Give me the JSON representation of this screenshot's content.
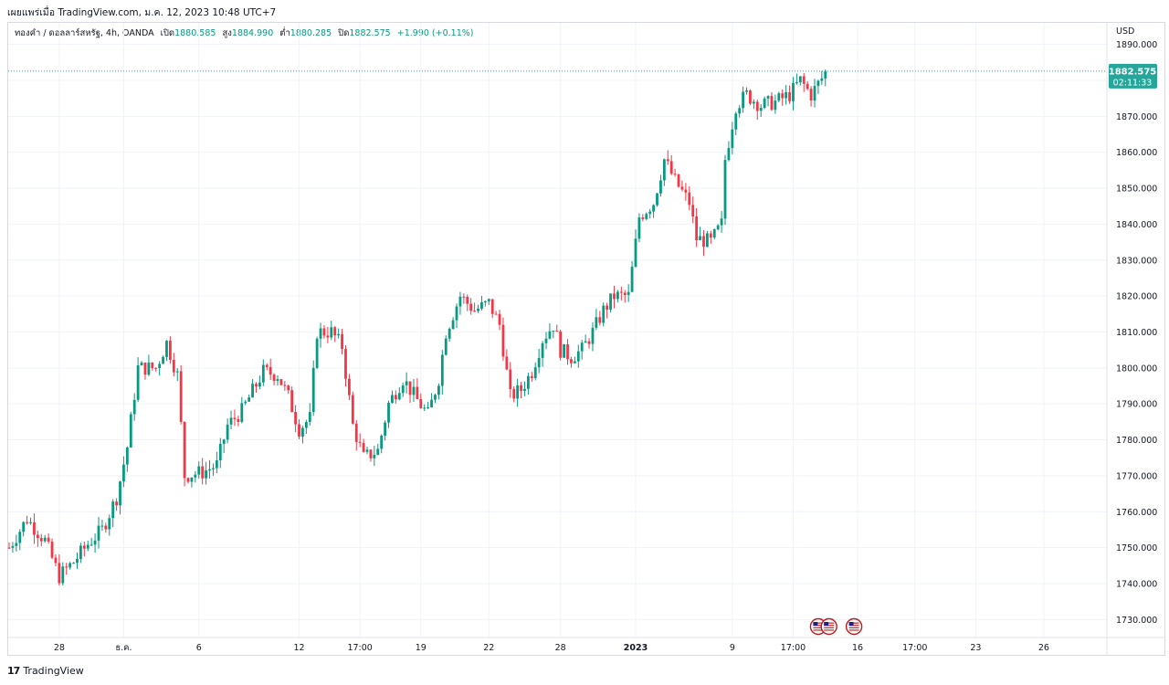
{
  "header": {
    "published": "เผยแพร่เมื่อ TradingView.com, ม.ค. 12, 2023 10:48 UTC+7"
  },
  "legend": {
    "symbol": "ทองคำ / ดอลลาร์สหรัฐ, 4h, OANDA",
    "open_label": "เปิด",
    "open_value": "1880.585",
    "high_label": "สูง",
    "high_value": "1884.990",
    "low_label": "ต่ำ",
    "low_value": "1880.285",
    "close_label": "ปิด",
    "close_value": "1882.575",
    "change": "+1.990 (+0.11%)"
  },
  "price_axis": {
    "unit": "USD",
    "last_price_label": "1882.575",
    "countdown_label": "02:11:33"
  },
  "footer": {
    "brand": "TradingView",
    "logo_glyph": "17"
  },
  "colors": {
    "up": "#089981",
    "down": "#f23645",
    "grid": "#f0f3fa",
    "accent": "#26a69a"
  },
  "chart_data": {
    "type": "candlestick",
    "timeframe": "4h",
    "ylim": [
      1725,
      1896
    ],
    "yticks": [
      1730,
      1740,
      1750,
      1760,
      1770,
      1780,
      1790,
      1800,
      1810,
      1820,
      1830,
      1840,
      1850,
      1860,
      1870,
      1880,
      1890
    ],
    "ytick_labels": [
      "1730.000",
      "1740.000",
      "1750.000",
      "1760.000",
      "1770.000",
      "1780.000",
      "1790.000",
      "1800.000",
      "1810.000",
      "1820.000",
      "1830.000",
      "1840.000",
      "1850.000",
      "1860.000",
      "1870.000",
      "1880.000",
      "1890.000"
    ],
    "xticks": [
      {
        "label": "28",
        "bar": 14,
        "bold": false
      },
      {
        "label": "ธ.ค.",
        "bar": 32,
        "bold": false
      },
      {
        "label": "6",
        "bar": 53,
        "bold": false
      },
      {
        "label": "12",
        "bar": 81,
        "bold": false
      },
      {
        "label": "17:00",
        "bar": 98,
        "bold": false
      },
      {
        "label": "19",
        "bar": 115,
        "bold": false
      },
      {
        "label": "22",
        "bar": 134,
        "bold": false
      },
      {
        "label": "28",
        "bar": 154,
        "bold": false
      },
      {
        "label": "2023",
        "bar": 175,
        "bold": true
      },
      {
        "label": "9",
        "bar": 202,
        "bold": false
      },
      {
        "label": "17:00",
        "bar": 219,
        "bold": false
      },
      {
        "label": "16",
        "bar": 237,
        "bold": false
      },
      {
        "label": "17:00",
        "bar": 253,
        "bold": false
      },
      {
        "label": "23",
        "bar": 270,
        "bold": false
      },
      {
        "label": "26",
        "bar": 289,
        "bold": false
      }
    ],
    "last_price": 1882.575,
    "events": [
      {
        "bar": 226,
        "icon": "us-flag-icon"
      },
      {
        "bar": 229,
        "icon": "us-flag-icon"
      },
      {
        "bar": 236,
        "icon": "us-flag-icon"
      }
    ],
    "candles": []
  }
}
